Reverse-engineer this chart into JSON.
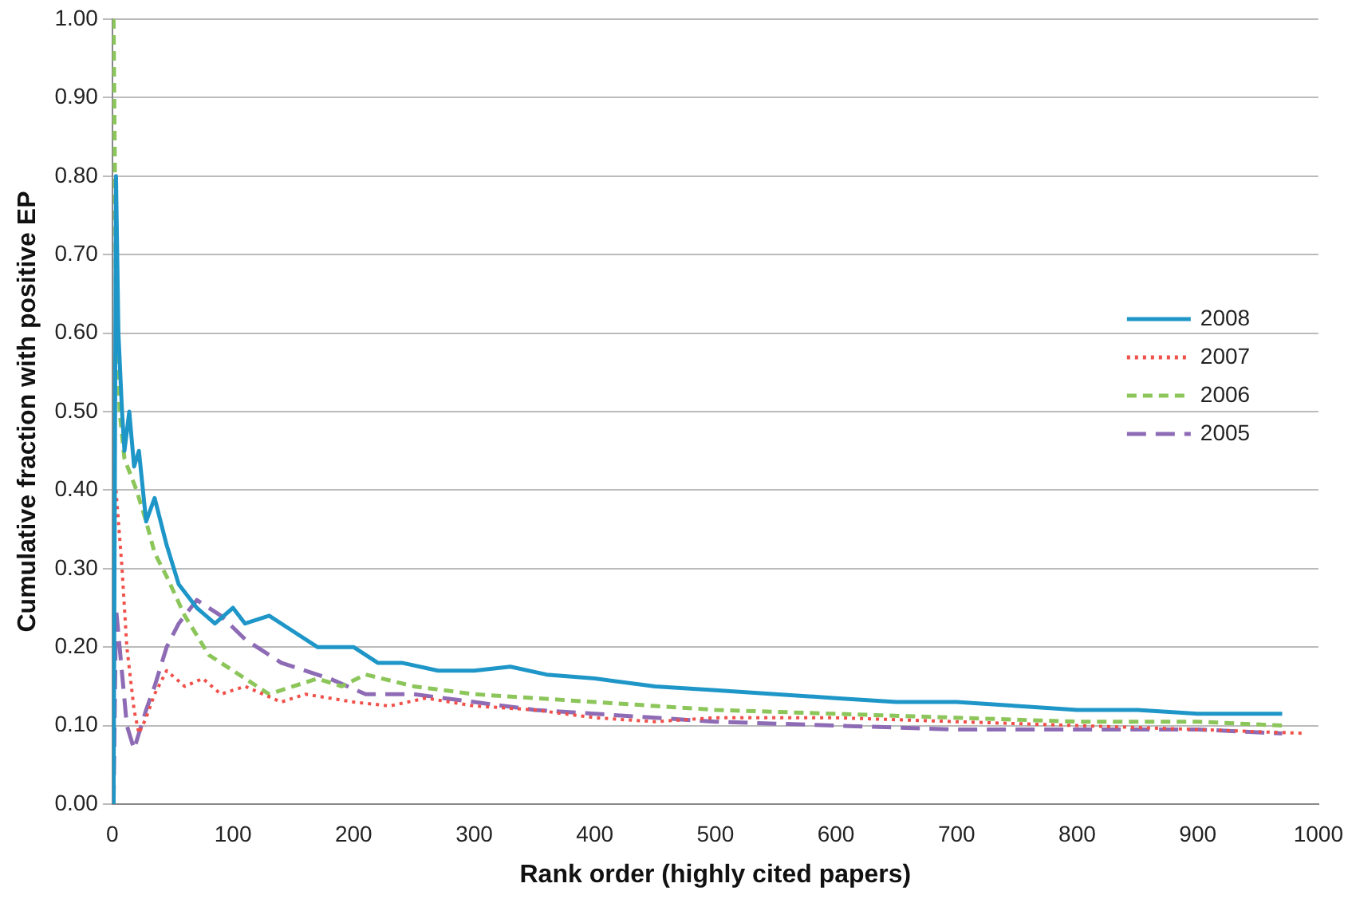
{
  "chart_data": {
    "type": "line",
    "xlabel": "Rank order (highly cited papers)",
    "ylabel": "Cumulative fraction with positive EP",
    "xlim": [
      0,
      1000
    ],
    "xticks": [
      0,
      100,
      200,
      300,
      400,
      500,
      600,
      700,
      800,
      900,
      1000
    ],
    "ylim": [
      0,
      1
    ],
    "yticks": [
      {
        "value": 0,
        "label": "0.00"
      },
      {
        "value": 0.1,
        "label": "0.10"
      },
      {
        "value": 0.2,
        "label": "0.20"
      },
      {
        "value": 0.3,
        "label": "0.30"
      },
      {
        "value": 0.4,
        "label": "0.40"
      },
      {
        "value": 0.5,
        "label": "0.50"
      },
      {
        "value": 0.6,
        "label": "0.60"
      },
      {
        "value": 0.7,
        "label": "0.70"
      },
      {
        "value": 0.8,
        "label": "0.80"
      },
      {
        "value": 0.9,
        "label": "0.90"
      },
      {
        "value": 1,
        "label": "1.00"
      }
    ],
    "grid": "y",
    "legend": "right",
    "marker": "none",
    "series": [
      {
        "name": "2008",
        "color": "#1e96c8",
        "line_style": "solid",
        "x": [
          1,
          3,
          5,
          8,
          10,
          14,
          18,
          22,
          28,
          35,
          45,
          55,
          70,
          85,
          100,
          110,
          130,
          150,
          170,
          200,
          220,
          240,
          270,
          300,
          330,
          360,
          400,
          450,
          500,
          550,
          600,
          650,
          700,
          750,
          800,
          850,
          900,
          970
        ],
        "values": [
          0,
          0.8,
          0.6,
          0.5,
          0.45,
          0.5,
          0.43,
          0.45,
          0.36,
          0.39,
          0.33,
          0.28,
          0.25,
          0.23,
          0.25,
          0.23,
          0.24,
          0.22,
          0.2,
          0.2,
          0.18,
          0.18,
          0.17,
          0.17,
          0.175,
          0.165,
          0.16,
          0.15,
          0.145,
          0.14,
          0.135,
          0.13,
          0.13,
          0.125,
          0.12,
          0.12,
          0.115,
          0.115
        ]
      },
      {
        "name": "2007",
        "color": "#f0504a",
        "line_style": "dotted",
        "x": [
          3,
          8,
          12,
          18,
          22,
          28,
          35,
          45,
          60,
          75,
          90,
          110,
          140,
          160,
          200,
          230,
          260,
          300,
          350,
          400,
          450,
          500,
          600,
          700,
          800,
          900,
          990
        ],
        "values": [
          0.4,
          0.3,
          0.2,
          0.12,
          0.09,
          0.11,
          0.14,
          0.17,
          0.15,
          0.16,
          0.14,
          0.15,
          0.13,
          0.14,
          0.13,
          0.125,
          0.135,
          0.125,
          0.12,
          0.11,
          0.105,
          0.11,
          0.11,
          0.105,
          0.1,
          0.095,
          0.09
        ]
      },
      {
        "name": "2006",
        "color": "#8cc65a",
        "line_style": "dashed",
        "x": [
          1,
          3,
          6,
          10,
          15,
          20,
          28,
          35,
          45,
          60,
          80,
          100,
          120,
          130,
          170,
          190,
          210,
          250,
          300,
          350,
          400,
          450,
          500,
          600,
          700,
          800,
          900,
          970
        ],
        "values": [
          1,
          0.65,
          0.5,
          0.44,
          0.42,
          0.4,
          0.36,
          0.32,
          0.29,
          0.24,
          0.19,
          0.17,
          0.15,
          0.14,
          0.16,
          0.15,
          0.165,
          0.15,
          0.14,
          0.135,
          0.13,
          0.125,
          0.12,
          0.115,
          0.11,
          0.105,
          0.105,
          0.1
        ]
      },
      {
        "name": "2005",
        "color": "#8e6bb5",
        "line_style": "longdash",
        "x": [
          1,
          3,
          6,
          12,
          18,
          28,
          35,
          45,
          55,
          70,
          90,
          110,
          140,
          180,
          210,
          250,
          300,
          350,
          400,
          450,
          500,
          600,
          700,
          800,
          900,
          970
        ],
        "values": [
          0,
          0.25,
          0.2,
          0.1,
          0.07,
          0.12,
          0.15,
          0.2,
          0.23,
          0.26,
          0.24,
          0.21,
          0.18,
          0.16,
          0.14,
          0.14,
          0.13,
          0.12,
          0.115,
          0.11,
          0.105,
          0.1,
          0.095,
          0.095,
          0.095,
          0.09
        ]
      }
    ]
  }
}
